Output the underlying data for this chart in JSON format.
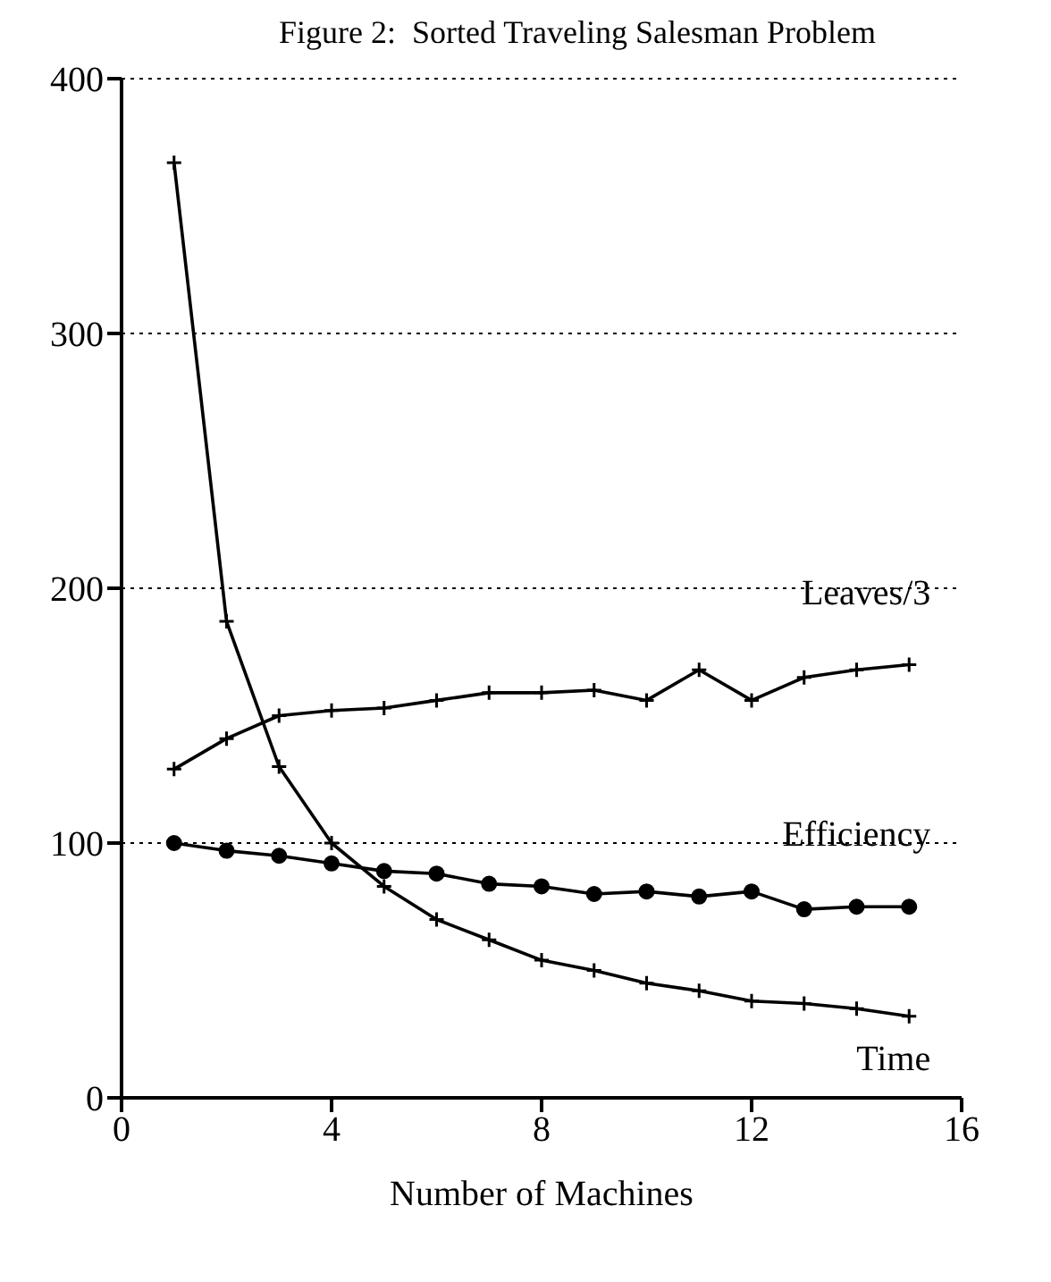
{
  "chart_data": {
    "type": "line",
    "title": "Figure 2:  Sorted Traveling Salesman Problem",
    "xlabel": "Number of Machines",
    "x": [
      1,
      2,
      3,
      4,
      5,
      6,
      7,
      8,
      9,
      10,
      11,
      12,
      13,
      14,
      15
    ],
    "series": [
      {
        "name": "Leaves/3",
        "color": "#000000",
        "marker": "cross",
        "values": [
          129,
          141,
          150,
          152,
          153,
          156,
          159,
          159,
          160,
          156,
          168,
          156,
          165,
          168,
          170
        ]
      },
      {
        "name": "Efficiency",
        "color": "#000000",
        "marker": "circle",
        "values": [
          100,
          97,
          95,
          92,
          89,
          88,
          84,
          83,
          80,
          81,
          79,
          81,
          74,
          75,
          75
        ]
      },
      {
        "name": "Time",
        "color": "#000000",
        "marker": "cross",
        "values": [
          367,
          187,
          130,
          100,
          83,
          70,
          62,
          54,
          50,
          45,
          42,
          38,
          37,
          35,
          32
        ]
      }
    ],
    "xlim": [
      0,
      16
    ],
    "xticks": [
      0,
      4,
      8,
      12,
      16
    ],
    "ylim": [
      0,
      400
    ],
    "yticks": [
      0,
      100,
      200,
      300,
      400
    ],
    "grid": "y",
    "legend": false,
    "line_style": "solid"
  }
}
